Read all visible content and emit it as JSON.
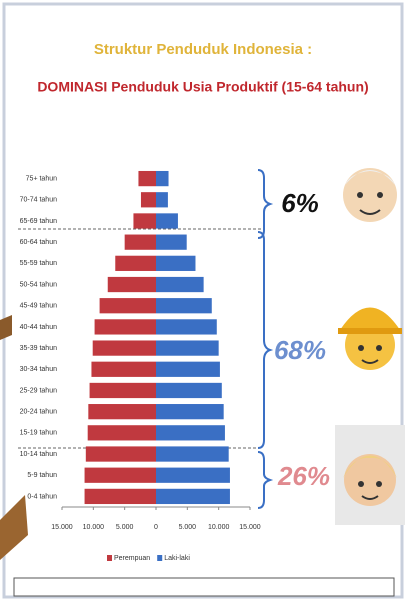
{
  "chart_data": {
    "type": "pyramid",
    "title": "Struktur Penduduk Indonesia :",
    "subtitle": "DOMINASI Penduduk Usia Produktif (15-64 tahun)",
    "categories": [
      "75+ tahun",
      "70-74 tahun",
      "65-69 tahun",
      "60-64 tahun",
      "55-59 tahun",
      "50-54 tahun",
      "45-49 tahun",
      "40-44 tahun",
      "35-39 tahun",
      "30-34 tahun",
      "25-29 tahun",
      "20-24 tahun",
      "15-19 tahun",
      "10-14 tahun",
      "5-9 tahun",
      "0-4 tahun"
    ],
    "series": [
      {
        "name": "Perempuan",
        "color": "#c0393f",
        "values": [
          -2800,
          -2400,
          -3600,
          -5000,
          -6500,
          -7700,
          -9000,
          -9800,
          -10100,
          -10300,
          -10600,
          -10800,
          -10900,
          -11200,
          -11400,
          -11400
        ]
      },
      {
        "name": "Laki-laki",
        "color": "#3a6fc4",
        "values": [
          2000,
          1900,
          3500,
          4900,
          6300,
          7600,
          8900,
          9700,
          10000,
          10200,
          10500,
          10800,
          11000,
          11600,
          11800,
          11800
        ]
      }
    ],
    "xlim": [
      -15000,
      15000
    ],
    "xticks": [
      {
        "value": -15000,
        "label": "15.000"
      },
      {
        "value": -10000,
        "label": "10.000"
      },
      {
        "value": -5000,
        "label": "5.000"
      },
      0,
      {
        "value": 5000,
        "label": "5.000"
      },
      {
        "value": 10000,
        "label": "10.000"
      },
      {
        "value": 15000,
        "label": "15.000"
      }
    ],
    "annotations": [
      "6%",
      "68%",
      "26%"
    ]
  }
}
